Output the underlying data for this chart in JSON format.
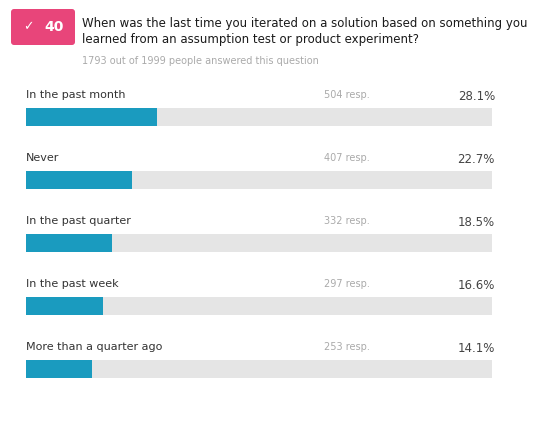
{
  "question_number": "40",
  "question_text_line1": "When was the last time you iterated on a solution based on something you",
  "question_text_line2": "learned from an assumption test or product experiment?",
  "respondents_text": "1793 out of 1999 people answered this question",
  "categories": [
    "In the past month",
    "Never",
    "In the past quarter",
    "In the past week",
    "More than a quarter ago"
  ],
  "responses": [
    504,
    407,
    332,
    297,
    253
  ],
  "percentages": [
    28.1,
    22.7,
    18.5,
    16.6,
    14.1
  ],
  "bar_color": "#1a9bbf",
  "bg_bar_color": "#e5e5e5",
  "header_bg_color": "#e8457a",
  "question_text_color": "#1a1a1a",
  "label_color": "#333333",
  "meta_color": "#aaaaaa",
  "resp_color": "#aaaaaa",
  "pct_color": "#444444",
  "background_color": "#ffffff",
  "fig_width": 5.5,
  "fig_height": 4.33,
  "dpi": 100
}
